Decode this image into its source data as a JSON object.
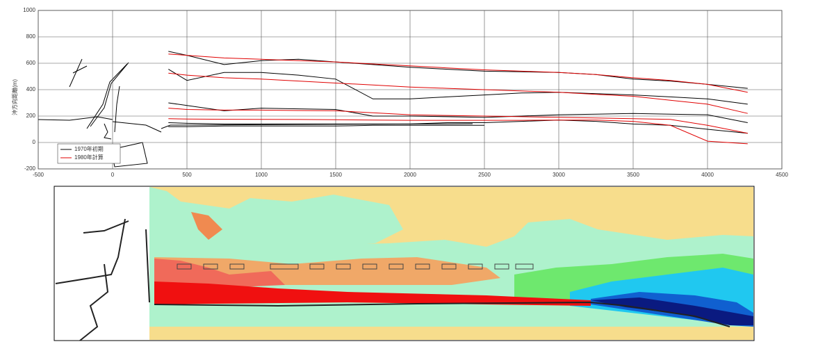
{
  "chart_data": {
    "type": "line",
    "ylabel": "沖方向距離(m)",
    "x": [
      375,
      500,
      750,
      1000,
      1250,
      1500,
      1750,
      2000,
      2250,
      2500,
      2750,
      3000,
      3250,
      3500,
      3750,
      4000,
      4270
    ],
    "series": [
      {
        "name": "1970年初期",
        "color": "#000000",
        "values": [
          690,
          660,
          590,
          620,
          630,
          610,
          590,
          570,
          555,
          540,
          535,
          530,
          515,
          480,
          465,
          440,
          410
        ]
      },
      {
        "color": "#000000",
        "values": [
          555,
          470,
          530,
          530,
          510,
          480,
          330,
          330,
          345,
          360,
          375,
          380,
          370,
          360,
          345,
          330,
          290
        ]
      },
      {
        "color": "#000000",
        "values": [
          300,
          280,
          240,
          260,
          255,
          250,
          200,
          200,
          195,
          190,
          200,
          210,
          215,
          220,
          215,
          210,
          150
        ]
      },
      {
        "color": "#000000",
        "values": [
          150,
          145,
          140,
          140,
          140,
          140,
          140,
          140,
          150,
          150,
          160,
          170,
          160,
          140,
          130,
          100,
          70
        ]
      },
      {
        "color": "#000000",
        "values": [
          120,
          120,
          125,
          125,
          125,
          125,
          130,
          130,
          130,
          130,
          null,
          null,
          null,
          null,
          null,
          null,
          null
        ]
      },
      {
        "name": "1980年計算",
        "color": "#e00000",
        "values": [
          670,
          660,
          640,
          630,
          620,
          610,
          595,
          580,
          565,
          550,
          540,
          530,
          515,
          490,
          470,
          440,
          380
        ]
      },
      {
        "color": "#e00000",
        "values": [
          525,
          510,
          490,
          480,
          465,
          450,
          435,
          420,
          410,
          400,
          390,
          380,
          365,
          350,
          320,
          290,
          220
        ]
      },
      {
        "color": "#e00000",
        "values": [
          260,
          250,
          245,
          245,
          242,
          240,
          225,
          210,
          205,
          200,
          195,
          190,
          185,
          180,
          175,
          130,
          70
        ]
      },
      {
        "color": "#e00000",
        "values": [
          180,
          178,
          176,
          175,
          174,
          172,
          170,
          168,
          168,
          168,
          168,
          170,
          170,
          160,
          130,
          10,
          -10
        ]
      }
    ],
    "xlim": [
      -500,
      4500
    ],
    "xticks": [
      -500,
      0,
      500,
      1000,
      1500,
      2000,
      2500,
      3000,
      3500,
      4000,
      4500
    ],
    "ylim": [
      -200,
      1000
    ],
    "yticks": [
      -200,
      0,
      200,
      400,
      600,
      800,
      1000
    ],
    "grid": true,
    "legend": "lower left"
  }
}
